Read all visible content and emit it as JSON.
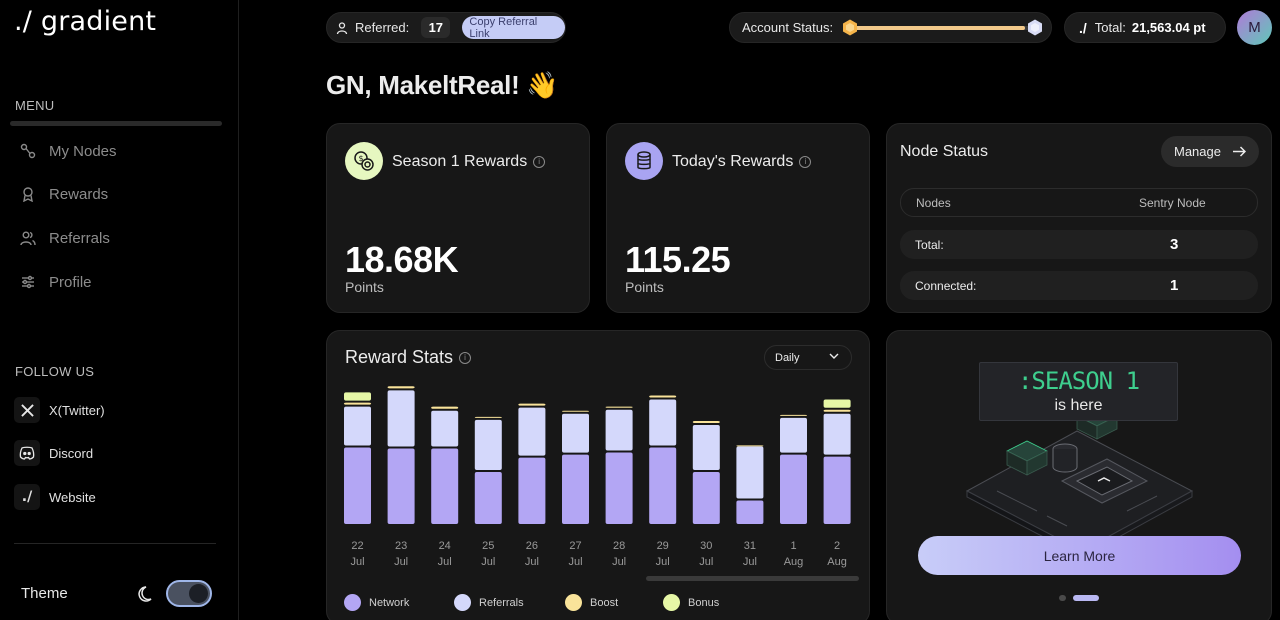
{
  "brand": {
    "logo": "./ gradient"
  },
  "sidebar": {
    "menu_label": "MENU",
    "items": [
      {
        "label": "My Nodes",
        "icon": "nodes-icon"
      },
      {
        "label": "Rewards",
        "icon": "rewards-icon"
      },
      {
        "label": "Referrals",
        "icon": "referrals-icon"
      },
      {
        "label": "Profile",
        "icon": "profile-icon"
      }
    ],
    "follow_label": "FOLLOW US",
    "follow": [
      {
        "label": "X(Twitter)",
        "icon": "x-twitter-icon"
      },
      {
        "label": "Discord",
        "icon": "discord-icon"
      },
      {
        "label": "Website",
        "icon": "website-icon"
      }
    ],
    "theme_label": "Theme"
  },
  "topbar": {
    "referred_label": "Referred:",
    "referred_count": "17",
    "copy_label": "Copy Referral Link",
    "status_label": "Account Status:",
    "status_progress": 0.97,
    "total_mark": "./",
    "total_label": "Total:",
    "total_value": "21,563.04 pt",
    "avatar_initial": "M"
  },
  "greeting": "GN, MakeltReal! 👋",
  "season_rewards": {
    "title": "Season 1 Rewards",
    "value": "18.68K",
    "unit": "Points"
  },
  "today_rewards": {
    "title": "Today's Rewards",
    "value": "115.25",
    "unit": "Points"
  },
  "node_status": {
    "title": "Node Status",
    "manage_label": "Manage",
    "head": {
      "col1": "Nodes",
      "col2": "Sentry Node"
    },
    "rows": [
      {
        "label": "Total:",
        "value": "3"
      },
      {
        "label": "Connected:",
        "value": "1"
      }
    ]
  },
  "reward_stats": {
    "title": "Reward Stats",
    "period": "Daily",
    "legend": [
      "Network",
      "Referrals",
      "Boost",
      "Bonus"
    ]
  },
  "colors": {
    "network": "#b3a6f4",
    "referrals": "#d4d8fb",
    "boost": "#f9e39a",
    "bonus": "#e6f7a6"
  },
  "chart_data": {
    "type": "bar",
    "stacked": true,
    "categories": [
      {
        "day": "22",
        "month": "Jul"
      },
      {
        "day": "23",
        "month": "Jul"
      },
      {
        "day": "24",
        "month": "Jul"
      },
      {
        "day": "25",
        "month": "Jul"
      },
      {
        "day": "26",
        "month": "Jul"
      },
      {
        "day": "27",
        "month": "Jul"
      },
      {
        "day": "28",
        "month": "Jul"
      },
      {
        "day": "29",
        "month": "Jul"
      },
      {
        "day": "30",
        "month": "Jul"
      },
      {
        "day": "31",
        "month": "Jul"
      },
      {
        "day": "1",
        "month": "Aug"
      },
      {
        "day": "2",
        "month": "Aug"
      }
    ],
    "series": [
      {
        "name": "Network",
        "values": [
          77,
          76,
          76,
          53,
          67,
          70,
          72,
          77,
          53,
          25,
          70,
          68
        ]
      },
      {
        "name": "Referrals",
        "values": [
          40,
          57,
          37,
          51,
          49,
          40,
          42,
          47,
          46,
          53,
          36,
          42
        ]
      },
      {
        "name": "Boost",
        "values": [
          4,
          4,
          4,
          3,
          4,
          3,
          3,
          4,
          4,
          1,
          3,
          4
        ]
      },
      {
        "name": "Bonus",
        "values": [
          10,
          0,
          0,
          0,
          0,
          0,
          0,
          0,
          0,
          0,
          0,
          10
        ]
      }
    ],
    "grid": false,
    "legend_position": "bottom"
  },
  "promo": {
    "line1": ":SEASON 1",
    "line2": "is here",
    "button": "Learn More"
  }
}
